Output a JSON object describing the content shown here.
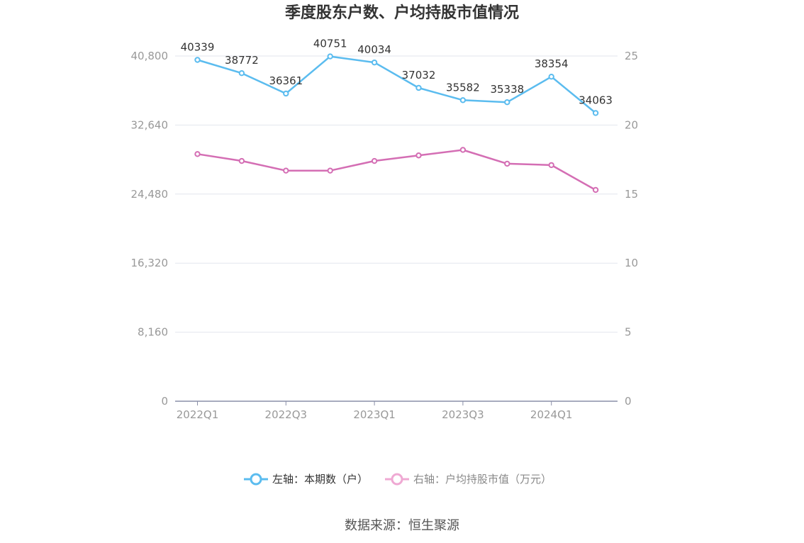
{
  "chart_data": {
    "type": "line",
    "title": "季度股东户数、户均持股市值情况",
    "x_tick_labels": [
      "2022Q1",
      "2022Q3",
      "2023Q1",
      "2023Q3",
      "2024Q1"
    ],
    "x": [
      "2022Q1",
      "2022Q2",
      "2022Q3",
      "2022Q4",
      "2023Q1",
      "2023Q2",
      "2023Q3",
      "2023Q4",
      "2024Q1",
      "2024Q2"
    ],
    "y_left": {
      "min": 0,
      "max": 40800,
      "ticks": [
        0,
        8160,
        16320,
        24480,
        32640,
        40800
      ],
      "tick_labels": [
        "0",
        "8,160",
        "16,320",
        "24,480",
        "32,640",
        "40,800"
      ]
    },
    "y_right": {
      "min": 0,
      "max": 25,
      "ticks": [
        0,
        5,
        10,
        15,
        20,
        25
      ],
      "tick_labels": [
        "0",
        "5",
        "10",
        "15",
        "20",
        "25"
      ]
    },
    "grid": true,
    "legend_position": "bottom",
    "series": [
      {
        "name": "左轴：本期数（户）",
        "axis": "left",
        "color": "#5bbcef",
        "values": [
          40339,
          38772,
          36361,
          40751,
          40034,
          37032,
          35582,
          35338,
          38354,
          34063
        ],
        "labels": [
          "40339",
          "38772",
          "36361",
          "40751",
          "40034",
          "37032",
          "35582",
          "35338",
          "38354",
          "34063"
        ]
      },
      {
        "name": "右轴：户均持股市值（万元）",
        "axis": "right",
        "color": "#d46eb4",
        "legend_color": "#efa9d3",
        "values": [
          17.9,
          17.4,
          16.7,
          16.7,
          17.4,
          17.8,
          18.2,
          17.2,
          17.1,
          15.3
        ]
      }
    ]
  },
  "source": "数据来源：恒生聚源"
}
